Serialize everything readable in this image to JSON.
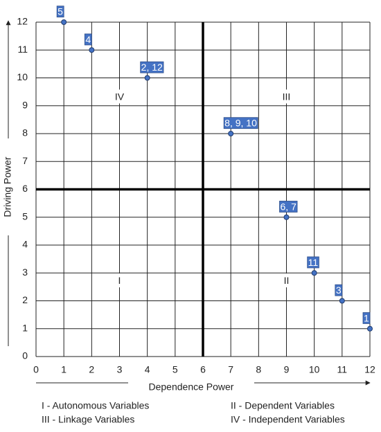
{
  "chart_data": {
    "type": "scatter",
    "x_label": "Dependence Power",
    "y_label": "Driving Power",
    "x": [
      1,
      2,
      4,
      7,
      9,
      10,
      11,
      12
    ],
    "values": [
      12,
      11,
      10,
      8,
      5,
      3,
      2,
      1
    ],
    "point_labels": [
      "5",
      "4",
      "2, 12",
      "8, 9, 10",
      "6, 7",
      "11",
      "3",
      "1"
    ],
    "color": "#4472c4",
    "xlim": [
      0,
      12
    ],
    "ylim": [
      0,
      12
    ],
    "xticks": [
      0,
      1,
      2,
      3,
      4,
      5,
      6,
      7,
      8,
      9,
      10,
      11,
      12
    ],
    "yticks": [
      0,
      1,
      2,
      3,
      4,
      5,
      6,
      7,
      8,
      9,
      10,
      11,
      12
    ],
    "grid": true,
    "x_divider": 6,
    "y_divider": 6,
    "quadrants": [
      "IV",
      "III",
      "I",
      "II"
    ],
    "notes": [
      "I - Autonomous Variables",
      "II - Dependent Variables",
      "III - Linkage Variables",
      "IV - Independent Variables"
    ]
  }
}
